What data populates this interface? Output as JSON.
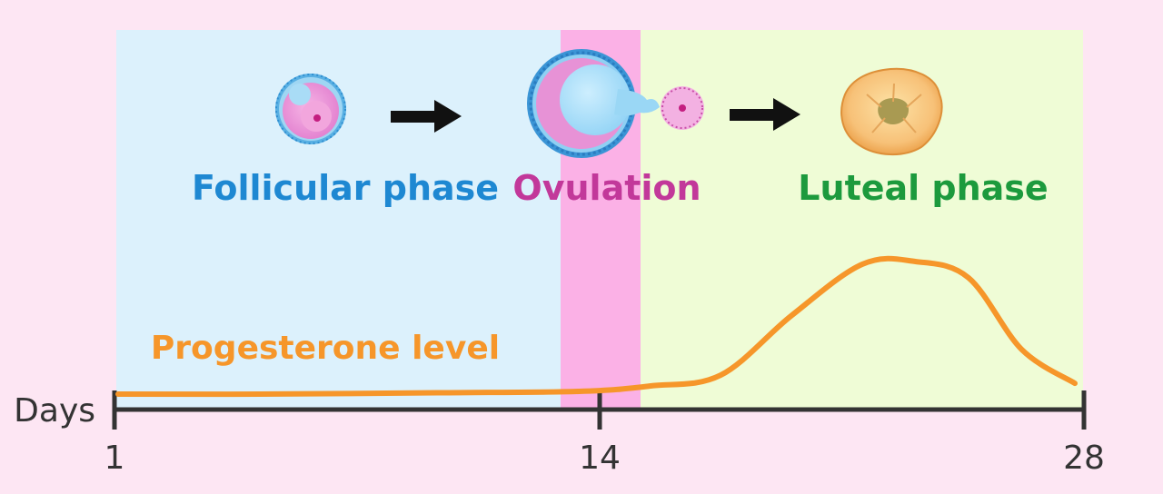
{
  "phases": {
    "follicular": {
      "label": "Follicular phase",
      "color": "#1e88d2",
      "bg": "#dcf1fc"
    },
    "ovulation": {
      "label": "Ovulation",
      "color": "#c2389a",
      "bg": "#fbb1e6"
    },
    "luteal": {
      "label": "Luteal phase",
      "color": "#1c9a3d",
      "bg": "#effcd6"
    }
  },
  "curve": {
    "label": "Progesterone level",
    "color": "#f6962a",
    "points": [
      {
        "day": 1,
        "level": 0.02
      },
      {
        "day": 5,
        "level": 0.02
      },
      {
        "day": 10,
        "level": 0.03
      },
      {
        "day": 14,
        "level": 0.04
      },
      {
        "day": 16,
        "level": 0.08
      },
      {
        "day": 18,
        "level": 0.16
      },
      {
        "day": 20,
        "level": 0.6
      },
      {
        "day": 22,
        "level": 0.98
      },
      {
        "day": 23.5,
        "level": 1.0
      },
      {
        "day": 25,
        "level": 0.88
      },
      {
        "day": 26.5,
        "level": 0.35
      },
      {
        "day": 28,
        "level": 0.1
      }
    ]
  },
  "axis": {
    "label": "Days",
    "ticks": [
      "1",
      "14",
      "28"
    ],
    "color": "#333333"
  },
  "arrow_color": "#111111",
  "icons": {
    "follicle": "follicle-icon",
    "ovulating_follicle": "ovulating-follicle-icon",
    "oocyte": "oocyte-icon",
    "corpus_luteum": "corpus-luteum-icon",
    "arrow": "arrow-right-icon"
  }
}
